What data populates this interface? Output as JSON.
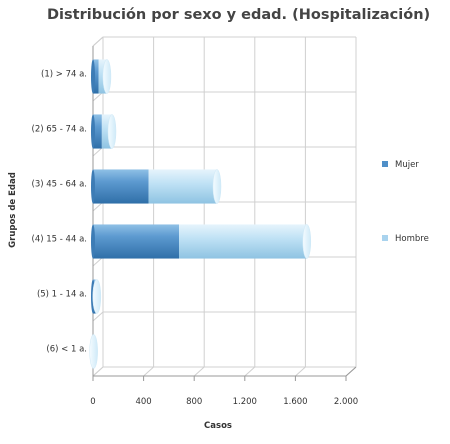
{
  "chart_data": {
    "type": "bar",
    "orientation": "horizontal",
    "stacked": true,
    "title": "Distribución por sexo y edad. (Hospitalización)",
    "xlabel": "Casos",
    "ylabel": "Grupos de Edad",
    "categories": [
      "(1) > 74 a.",
      "(2) 65 - 74 a.",
      "(3) 45 - 64 a.",
      "(4) 15 - 44 a.",
      "(5) 1 - 14 a.",
      "(6) < 1 a."
    ],
    "series": [
      {
        "name": "Mujer",
        "values": [
          45,
          70,
          440,
          680,
          20,
          0
        ]
      },
      {
        "name": "Hombre",
        "values": [
          65,
          80,
          540,
          1010,
          10,
          5
        ]
      }
    ],
    "xlim": [
      0,
      2000
    ],
    "xticks": [
      "0",
      "400",
      "800",
      "1.200",
      "1.600",
      "2.000"
    ],
    "grid": true,
    "legend_position": "right",
    "colors": {
      "Mujer": "#4f8fc8",
      "Hombre": "#a9d3ee"
    }
  }
}
